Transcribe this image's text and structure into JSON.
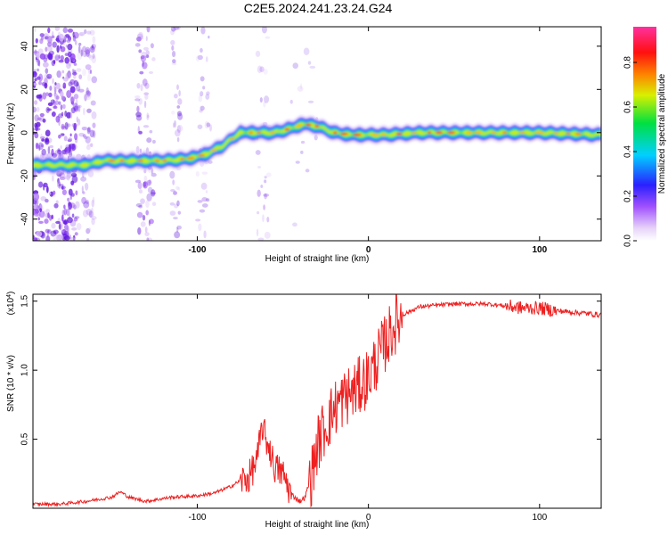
{
  "title": "C2E5.2024.241.23.24.G24",
  "chart_data": [
    {
      "type": "heatmap",
      "xlabel": "Height of straight line (km)",
      "ylabel": "Frequency (Hz)",
      "xlim": [
        -196,
        136
      ],
      "ylim": [
        -50,
        49
      ],
      "x_ticks": [
        -100,
        0,
        100
      ],
      "y_ticks": [
        40,
        20,
        0,
        -20,
        -40
      ],
      "x_tick_labels": [
        "-100",
        "0",
        "100"
      ],
      "y_tick_labels": [
        "40",
        "20",
        "0",
        "-20",
        "-40"
      ],
      "colorbar": {
        "label": "Normalized spectral amplitude",
        "range": [
          0,
          0.96
        ],
        "ticks": [
          0.0,
          0.2,
          0.4,
          0.6,
          0.8
        ],
        "tick_labels": [
          "0.0",
          "0.2",
          "0.4",
          "0.6",
          "0.8"
        ],
        "colors": [
          "#ffffff",
          "#c9a0f0",
          "#8a20ff",
          "#2020ff",
          "#00c8ff",
          "#00e060",
          "#d8f000",
          "#ff7000",
          "#ff1010",
          "#ff30a0"
        ]
      },
      "ridge": {
        "x": [
          -196,
          -165,
          -155,
          -140,
          -120,
          -105,
          -95,
          -85,
          -75,
          -65,
          -55,
          -45,
          -38,
          -30,
          -20,
          -10,
          0,
          10,
          30,
          60,
          100,
          136
        ],
        "y": [
          -15,
          -15,
          -13,
          -13,
          -13,
          -12,
          -10,
          -6,
          0,
          0,
          0,
          2,
          4,
          3,
          0,
          -1,
          -1,
          -1,
          0,
          0,
          0,
          -1
        ]
      }
    },
    {
      "type": "line",
      "xlabel": "Height of straight line (km)",
      "ylabel": "SNR (10 * v/v)",
      "multiplier_label": "(x10",
      "multiplier_exp": "4",
      "xlim": [
        -196,
        136
      ],
      "ylim": [
        0,
        1.55
      ],
      "x_ticks": [
        -100,
        0,
        100
      ],
      "y_ticks": [
        0.5,
        1.0,
        1.5
      ],
      "x_tick_labels": [
        "-100",
        "0",
        "100"
      ],
      "y_tick_labels": [
        "0.5",
        "1.0",
        "1.5"
      ],
      "color": "#ee2020",
      "series_x": [
        -196,
        -180,
        -165,
        -150,
        -145,
        -140,
        -130,
        -115,
        -100,
        -90,
        -80,
        -75,
        -70,
        -65,
        -62,
        -60,
        -58,
        -55,
        -50,
        -45,
        -40,
        -37,
        -33,
        -30,
        -27,
        -24,
        -20,
        -16,
        -12,
        -8,
        -4,
        0,
        4,
        8,
        12,
        15,
        20,
        30,
        50,
        70,
        90,
        100,
        110,
        120,
        136
      ],
      "series_y": [
        0.03,
        0.03,
        0.05,
        0.08,
        0.12,
        0.08,
        0.05,
        0.08,
        0.09,
        0.11,
        0.16,
        0.2,
        0.22,
        0.35,
        0.6,
        0.5,
        0.45,
        0.3,
        0.25,
        0.1,
        0.05,
        0.08,
        0.25,
        0.45,
        0.55,
        0.62,
        0.72,
        0.78,
        0.82,
        0.85,
        0.9,
        0.95,
        1.05,
        1.15,
        1.25,
        1.32,
        1.4,
        1.46,
        1.48,
        1.48,
        1.45,
        1.45,
        1.43,
        1.42,
        1.4
      ]
    }
  ]
}
